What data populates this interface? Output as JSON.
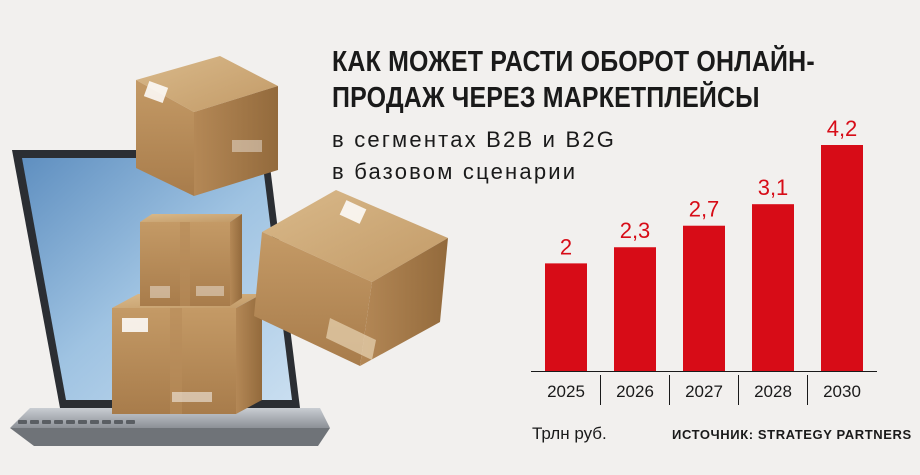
{
  "header": {
    "title_line1": "КАК МОЖЕТ РАСТИ ОБОРОТ ОНЛАЙН-",
    "title_line2": "ПРОДАЖ ЧЕРЕЗ МАРКЕТПЛЕЙСЫ",
    "subtitle_line1": "в сегментах B2B и B2G",
    "subtitle_line2": "в базовом сценарии"
  },
  "footer": {
    "unit": "Трлн руб.",
    "source": "ИСТОЧНИК: STRATEGY PARTNERS"
  },
  "colors": {
    "bar": "#d70c17",
    "value_label": "#d70c17",
    "text": "#1a1a1a",
    "background": "#f2f0ee"
  },
  "chart_data": {
    "type": "bar",
    "categories": [
      "2025",
      "2026",
      "2027",
      "2028",
      "2030"
    ],
    "values": [
      2,
      2.3,
      2.7,
      3.1,
      4.2
    ],
    "value_labels": [
      "2",
      "2,3",
      "2,7",
      "3,1",
      "4,2"
    ],
    "title": "КАК МОЖЕТ РАСТИ ОБОРОТ ОНЛАЙН-ПРОДАЖ ЧЕРЕЗ МАРКЕТПЛЕЙСЫ",
    "subtitle": "в сегментах B2B и B2G в базовом сценарии",
    "ylabel": "Трлн руб.",
    "xlabel": "",
    "ylim": [
      0,
      4.2
    ],
    "grid": false
  }
}
